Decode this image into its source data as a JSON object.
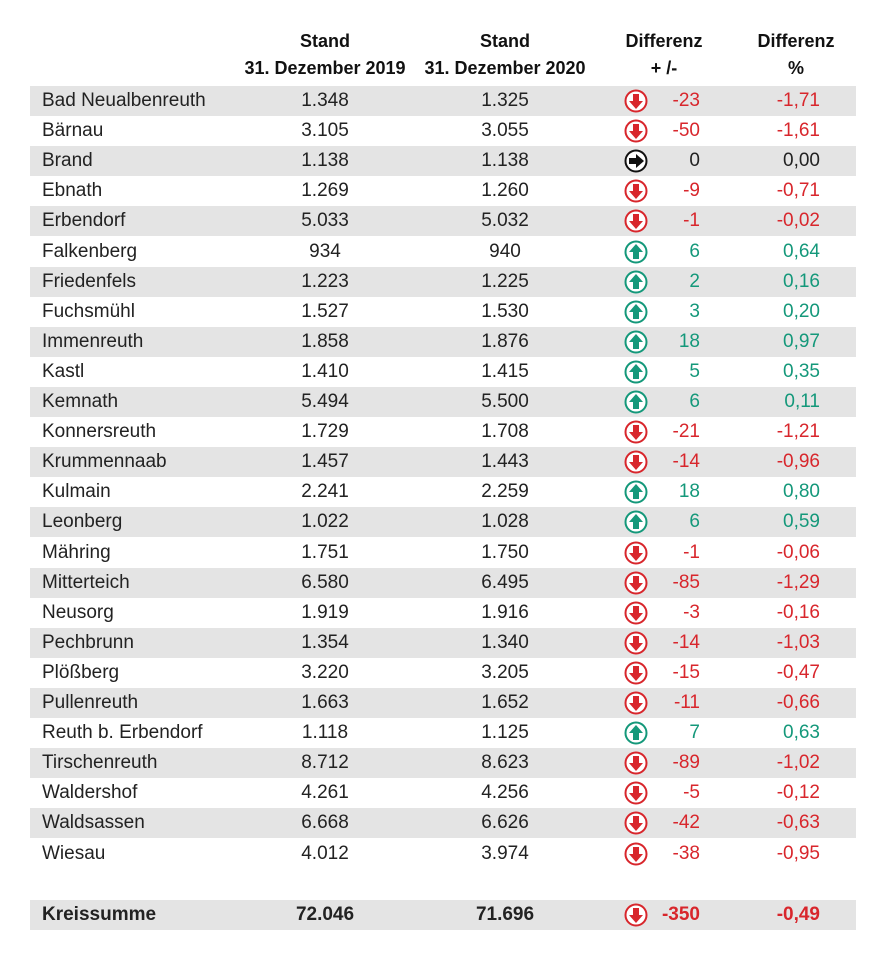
{
  "table": {
    "columns": [
      {
        "lines": [
          "Stand",
          "31. Dezember 2019"
        ]
      },
      {
        "lines": [
          "Stand",
          "31. Dezember 2020"
        ]
      },
      {
        "lines": [
          "Differenz",
          "+ /-"
        ]
      },
      {
        "lines": [
          "Differenz",
          "%"
        ]
      }
    ],
    "rows": [
      [
        "Bad Neualbenreuth",
        "1.348",
        "1.325",
        "-23",
        "-1,71"
      ],
      [
        "Bärnau",
        "3.105",
        "3.055",
        "-50",
        "-1,61"
      ],
      [
        "Brand",
        "1.138",
        "1.138",
        "0",
        "0,00"
      ],
      [
        "Ebnath",
        "1.269",
        "1.260",
        "-9",
        "-0,71"
      ],
      [
        "Erbendorf",
        "5.033",
        "5.032",
        "-1",
        "-0,02"
      ],
      [
        "Falkenberg",
        "934",
        "940",
        "6",
        "0,64"
      ],
      [
        "Friedenfels",
        "1.223",
        "1.225",
        "2",
        "0,16"
      ],
      [
        "Fuchsmühl",
        "1.527",
        "1.530",
        "3",
        "0,20"
      ],
      [
        "Immenreuth",
        "1.858",
        "1.876",
        "18",
        "0,97"
      ],
      [
        "Kastl",
        "1.410",
        "1.415",
        "5",
        "0,35"
      ],
      [
        "Kemnath",
        "5.494",
        "5.500",
        "6",
        "0,11"
      ],
      [
        "Konnersreuth",
        "1.729",
        "1.708",
        "-21",
        "-1,21"
      ],
      [
        "Krummennaab",
        "1.457",
        "1.443",
        "-14",
        "-0,96"
      ],
      [
        "Kulmain",
        "2.241",
        "2.259",
        "18",
        "0,80"
      ],
      [
        "Leonberg",
        "1.022",
        "1.028",
        "6",
        "0,59"
      ],
      [
        "Mähring",
        "1.751",
        "1.750",
        "-1",
        "-0,06"
      ],
      [
        "Mitterteich",
        "6.580",
        "6.495",
        "-85",
        "-1,29"
      ],
      [
        "Neusorg",
        "1.919",
        "1.916",
        "-3",
        "-0,16"
      ],
      [
        "Pechbrunn",
        "1.354",
        "1.340",
        "-14",
        "-1,03"
      ],
      [
        "Plößberg",
        "3.220",
        "3.205",
        "-15",
        "-0,47"
      ],
      [
        "Pullenreuth",
        "1.663",
        "1.652",
        "-11",
        "-0,66"
      ],
      [
        "Reuth b. Erbendorf",
        "1.118",
        "1.125",
        "7",
        "0,63"
      ],
      [
        "Tirschenreuth",
        "8.712",
        "8.623",
        "-89",
        "-1,02"
      ],
      [
        "Waldershof",
        "4.261",
        "4.256",
        "-5",
        "-0,12"
      ],
      [
        "Waldsassen",
        "6.668",
        "6.626",
        "-42",
        "-0,63"
      ],
      [
        "Wiesau",
        "4.012",
        "3.974",
        "-38",
        "-0,95"
      ]
    ],
    "total": [
      "Kreissumme",
      "72.046",
      "71.696",
      "-350",
      "-0,49"
    ]
  }
}
